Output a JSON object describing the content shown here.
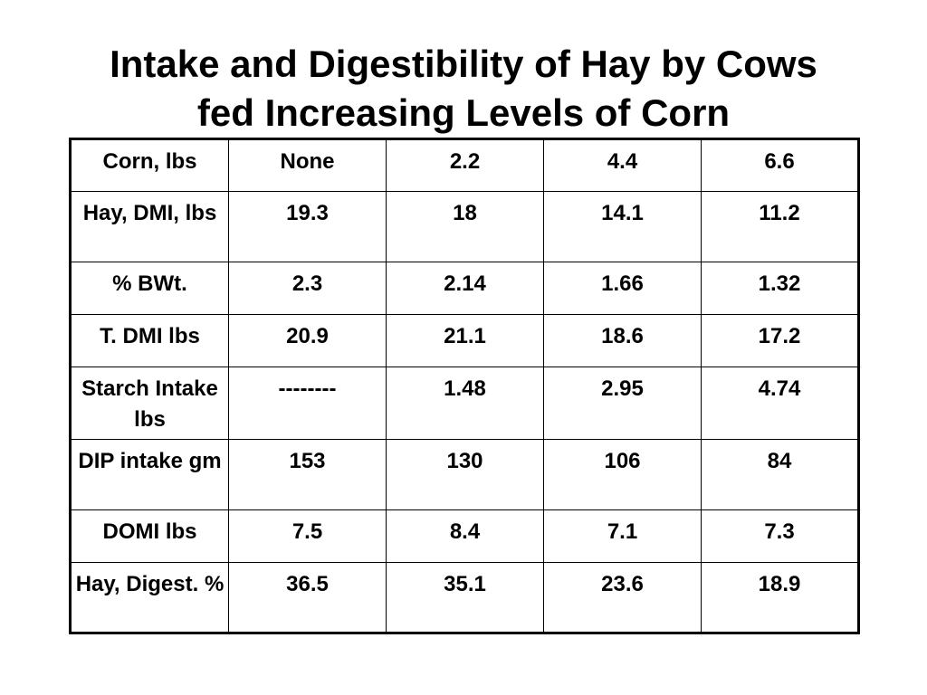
{
  "slide": {
    "title_line1": "Intake and Digestibility of Hay by Cows",
    "title_line2": "fed Increasing Levels of Corn"
  },
  "table": {
    "rows": [
      [
        "Corn, lbs",
        "None",
        "2.2",
        "4.4",
        "6.6"
      ],
      [
        "Hay, DMI, lbs",
        "19.3",
        "18",
        "14.1",
        "11.2"
      ],
      [
        "% BWt.",
        "2.3",
        "2.14",
        "1.66",
        "1.32"
      ],
      [
        "T. DMI lbs",
        "20.9",
        "21.1",
        "18.6",
        "17.2"
      ],
      [
        "Starch Intake lbs",
        "--------",
        "1.48",
        "2.95",
        "4.74"
      ],
      [
        "DIP intake gm",
        "153",
        "130",
        "106",
        "84"
      ],
      [
        "DOMI lbs",
        "7.5",
        "8.4",
        "7.1",
        "7.3"
      ],
      [
        "Hay, Digest. %",
        "36.5",
        "35.1",
        "23.6",
        "18.9"
      ]
    ]
  }
}
